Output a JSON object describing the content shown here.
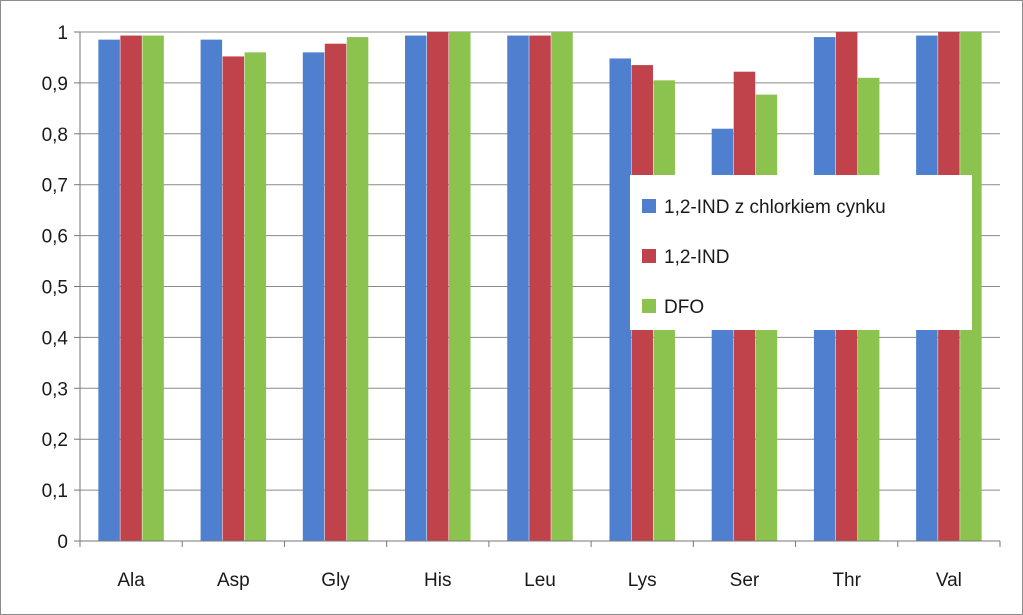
{
  "chart_data": {
    "type": "bar",
    "title": "",
    "xlabel": "",
    "ylabel": "",
    "categories": [
      "Ala",
      "Asp",
      "Gly",
      "His",
      "Leu",
      "Lys",
      "Ser",
      "Thr",
      "Val"
    ],
    "series": [
      {
        "name": "1,2-IND z chlorkiem cynku",
        "color": "#4f7fcf",
        "values": [
          0.985,
          0.985,
          0.96,
          0.993,
          0.993,
          0.948,
          0.81,
          0.99,
          0.993
        ]
      },
      {
        "name": "1,2-IND",
        "color": "#c0424b",
        "values": [
          0.993,
          0.952,
          0.977,
          1.0,
          0.993,
          0.935,
          0.922,
          1.0,
          1.0
        ]
      },
      {
        "name": "DFO",
        "color": "#8cc34f",
        "values": [
          0.993,
          0.96,
          0.99,
          1.0,
          1.0,
          0.905,
          0.877,
          0.91,
          1.0
        ]
      }
    ],
    "ylim": [
      0,
      1
    ],
    "yticks": [
      0,
      0.1,
      0.2,
      0.3,
      0.4,
      0.5,
      0.6,
      0.7,
      0.8,
      0.9,
      1
    ],
    "ytick_labels": [
      "0",
      "0,1",
      "0,2",
      "0,3",
      "0,4",
      "0,5",
      "0,6",
      "0,7",
      "0,8",
      "0,9",
      "1"
    ],
    "grid": true,
    "legend_position": "right"
  }
}
